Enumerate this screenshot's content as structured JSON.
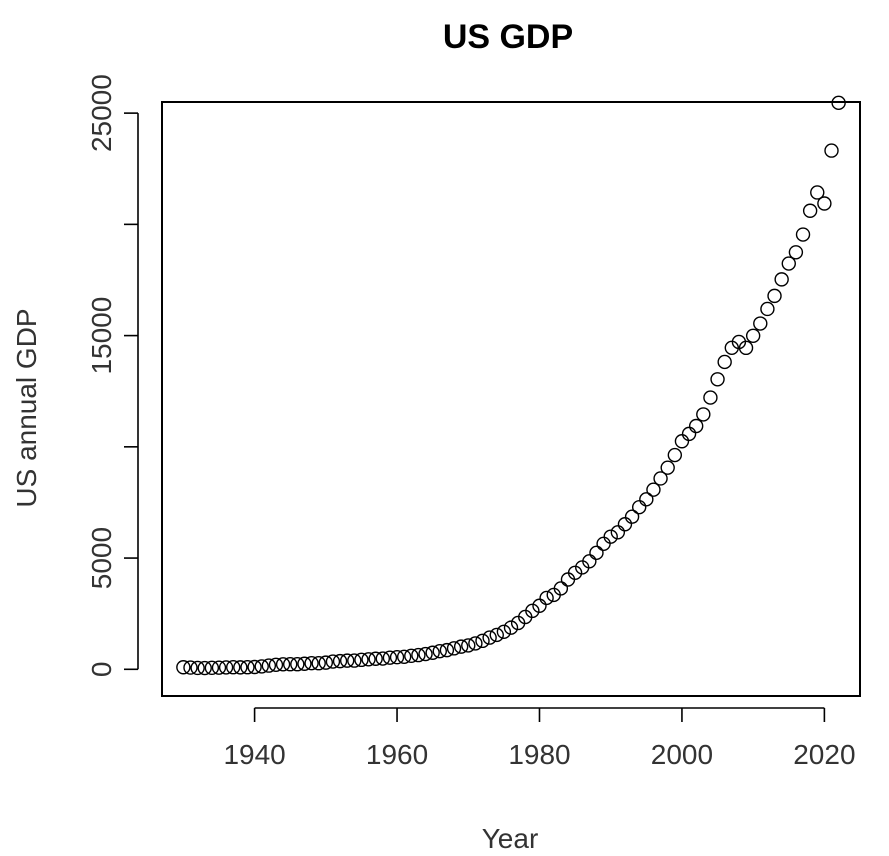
{
  "chart_data": {
    "type": "scatter",
    "title": "US GDP",
    "xlabel": "Year",
    "ylabel": "US annual GDP",
    "xlim": [
      1927,
      2025
    ],
    "ylim": [
      -1200,
      25500
    ],
    "x_ticks": [
      1940,
      1960,
      1980,
      2000,
      2020
    ],
    "x_tick_labels": [
      "1940",
      "1960",
      "1980",
      "2000",
      "2020"
    ],
    "y_ticks": [
      0,
      5000,
      15000,
      25000
    ],
    "y_tick_labels": [
      "0",
      "5000",
      "15000",
      "25000"
    ],
    "y_minor_ticks": [
      10000,
      20000
    ],
    "series": [
      {
        "name": "US annual GDP",
        "x": [
          1930,
          1931,
          1932,
          1933,
          1934,
          1935,
          1936,
          1937,
          1938,
          1939,
          1940,
          1941,
          1942,
          1943,
          1944,
          1945,
          1946,
          1947,
          1948,
          1949,
          1950,
          1951,
          1952,
          1953,
          1954,
          1955,
          1956,
          1957,
          1958,
          1959,
          1960,
          1961,
          1962,
          1963,
          1964,
          1965,
          1966,
          1967,
          1968,
          1969,
          1970,
          1971,
          1972,
          1973,
          1974,
          1975,
          1976,
          1977,
          1978,
          1979,
          1980,
          1981,
          1982,
          1983,
          1984,
          1985,
          1986,
          1987,
          1988,
          1989,
          1990,
          1991,
          1992,
          1993,
          1994,
          1995,
          1996,
          1997,
          1998,
          1999,
          2000,
          2001,
          2002,
          2003,
          2004,
          2005,
          2006,
          2007,
          2008,
          2009,
          2010,
          2011,
          2012,
          2013,
          2014,
          2015,
          2016,
          2017,
          2018,
          2019,
          2020,
          2021,
          2022
        ],
        "y": [
          92,
          77,
          60,
          57,
          66,
          74,
          85,
          93,
          87,
          93,
          103,
          129,
          166,
          203,
          225,
          228,
          228,
          250,
          275,
          273,
          300,
          347,
          368,
          390,
          391,
          425,
          449,
          474,
          482,
          522,
          543,
          563,
          605,
          638,
          686,
          744,
          815,
          862,
          942,
          1019,
          1073,
          1165,
          1279,
          1425,
          1545,
          1685,
          1873,
          2082,
          2352,
          2627,
          2857,
          3207,
          3344,
          3634,
          4037,
          4339,
          4580,
          4855,
          5236,
          5642,
          5963,
          6158,
          6520,
          6858,
          7287,
          7640,
          8073,
          8578,
          9063,
          9631,
          10251,
          10582,
          10936,
          11458,
          12214,
          13037,
          13815,
          14452,
          14713,
          14449,
          14992,
          15543,
          16197,
          16785,
          17527,
          18238,
          18745,
          19543,
          20612,
          21433,
          20937,
          23315,
          25463
        ]
      }
    ]
  }
}
